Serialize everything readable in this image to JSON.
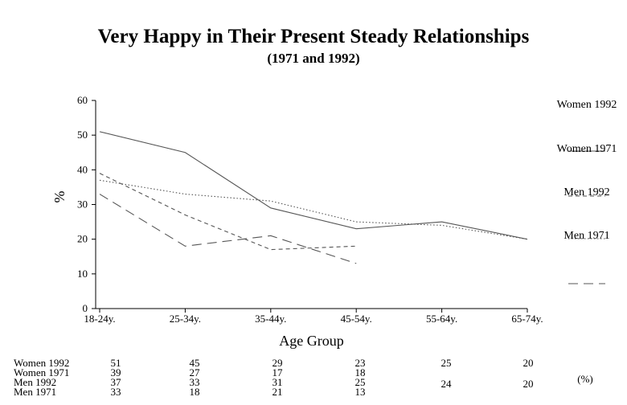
{
  "chart_data": {
    "type": "line",
    "title": "Very Happy in Their Present Steady Relationships",
    "subtitle": "(1971 and 1992)",
    "xlabel": "Age Group",
    "ylabel": "%",
    "ylim": [
      0,
      60
    ],
    "yticks": [
      "0",
      "10",
      "20",
      "30",
      "40",
      "50",
      "60"
    ],
    "categories": [
      "18-24y.",
      "25-34y.",
      "35-44y.",
      "45-54y.",
      "55-64y.",
      "65-74y."
    ],
    "grid": false,
    "legend_position": "right",
    "series": [
      {
        "name": "Women 1992",
        "values": [
          51,
          45,
          29,
          23,
          25,
          20
        ],
        "labels": [
          "51",
          "45",
          "29",
          "23",
          "25",
          "20"
        ],
        "style": "solid"
      },
      {
        "name": "Women 1971",
        "values": [
          39,
          27,
          17,
          18,
          null,
          null
        ],
        "labels": [
          "39",
          "27",
          "17",
          "18",
          "",
          ""
        ],
        "style": "dashed"
      },
      {
        "name": "Men 1992",
        "values": [
          37,
          33,
          31,
          25,
          24,
          20
        ],
        "labels": [
          "37",
          "33",
          "31",
          "25",
          "24",
          "20"
        ],
        "style": "dotted"
      },
      {
        "name": "Men 1971",
        "values": [
          33,
          18,
          21,
          13,
          null,
          null
        ],
        "labels": [
          "33",
          "18",
          "21",
          "13",
          "",
          ""
        ],
        "style": "longdash"
      }
    ],
    "table_unit": "(%)",
    "line_color": "#555555"
  }
}
